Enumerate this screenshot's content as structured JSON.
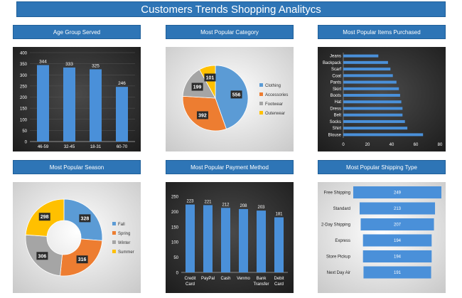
{
  "page_title": "Customers Trends Shopping Analitycs",
  "colors": {
    "header_bg": "#2e75b6",
    "bar": "#4a90d9",
    "clothing": "#5b9bd5",
    "accessories": "#ed7d31",
    "footwear": "#a5a5a5",
    "outerwear": "#ffc000"
  },
  "chart_data": [
    {
      "type": "bar",
      "title": "Age Group Served",
      "categories": [
        "46-59",
        "32-45",
        "18-31",
        "60-70"
      ],
      "values": [
        344,
        333,
        325,
        246
      ],
      "ylim": [
        0,
        400
      ],
      "yticks": [
        "0",
        "50",
        "100",
        "150",
        "200",
        "250",
        "300",
        "350",
        "400"
      ]
    },
    {
      "type": "pie",
      "title": "Most Popular Category",
      "labels": [
        "Clothing",
        "Accessories",
        "Footwear",
        "Outerwear"
      ],
      "values": [
        556,
        392,
        199,
        101
      ]
    },
    {
      "type": "bar",
      "orientation": "horizontal",
      "title": "Most Popular Items Purchased",
      "categories": [
        "Jeans",
        "Backpack",
        "Scarf",
        "Coat",
        "Pants",
        "Skirt",
        "Boots",
        "Hat",
        "Dress",
        "Belt",
        "Socks",
        "Shirt",
        "Blouse"
      ],
      "values": [
        29,
        37,
        39,
        41,
        44,
        46,
        47,
        48,
        49,
        49,
        51,
        53,
        66
      ],
      "xlim": [
        0,
        80
      ],
      "xticks": [
        "0",
        "20",
        "40",
        "60",
        "80"
      ]
    },
    {
      "type": "pie",
      "subtype": "donut",
      "title": "Most Popular Season",
      "labels": [
        "Fall",
        "Spring",
        "Winter",
        "Summer"
      ],
      "values": [
        328,
        316,
        306,
        298
      ]
    },
    {
      "type": "bar",
      "title": "Most Popular Payment Method",
      "categories": [
        "Credit Card",
        "PayPal",
        "Cash",
        "Venmo",
        "Bank Transfer",
        "Debit Card"
      ],
      "category_lines": [
        [
          "Credit",
          "Card"
        ],
        [
          "PayPal",
          ""
        ],
        [
          "Cash",
          ""
        ],
        [
          "Venmo",
          ""
        ],
        [
          "Bank",
          "Transfer"
        ],
        [
          "Debit",
          "Card"
        ]
      ],
      "values": [
        223,
        221,
        212,
        208,
        203,
        181
      ],
      "ylim": [
        0,
        250
      ],
      "yticks": [
        "0",
        "50",
        "100",
        "150",
        "200",
        "250"
      ]
    },
    {
      "type": "bar",
      "orientation": "horizontal",
      "subtype": "funnel",
      "title": "Most Popular Shipping Type",
      "categories": [
        "Free Shipping",
        "Standard",
        "2-Day Shipping",
        "Express",
        "Store Pickup",
        "Next Day Air"
      ],
      "values": [
        249,
        213,
        207,
        194,
        194,
        191
      ]
    }
  ]
}
